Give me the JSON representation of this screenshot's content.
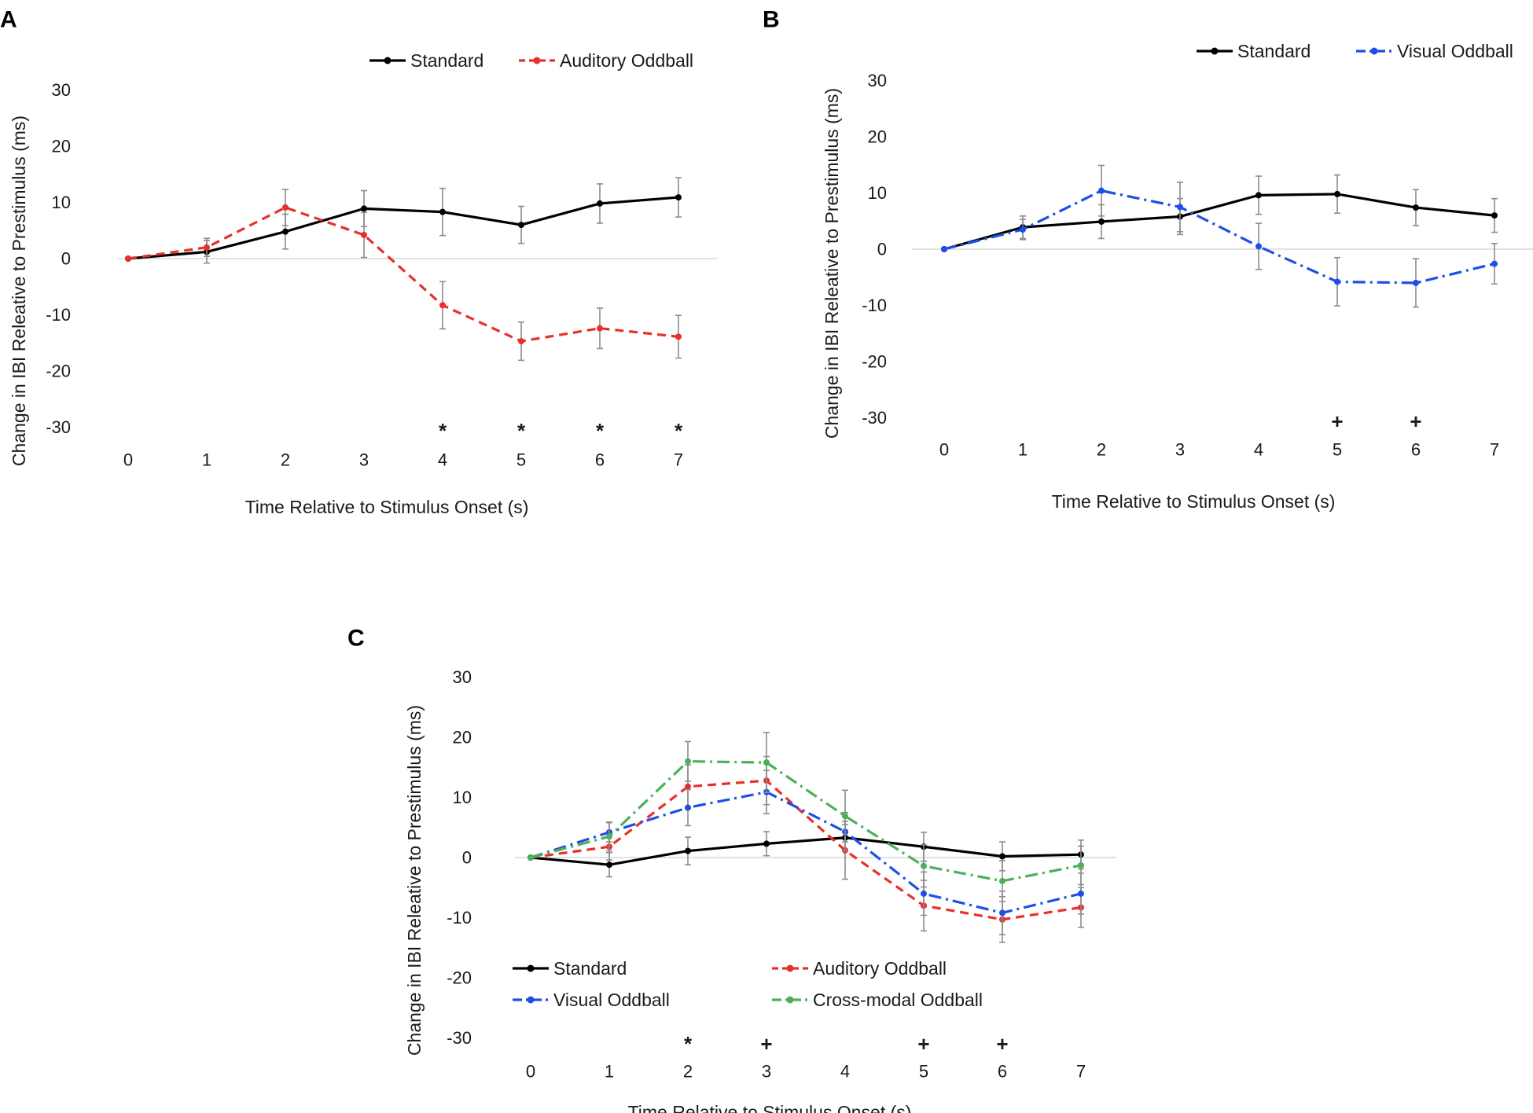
{
  "chart_data": [
    {
      "panel": "A",
      "type": "line",
      "title": "",
      "xlabel": "Time Relative to Stimulus Onset (s)",
      "ylabel": "Change in IBI Releative to Prestimulus (ms)",
      "ylim": [
        -30,
        30
      ],
      "yticks": [
        30,
        20,
        10,
        0,
        -10,
        -20,
        -30
      ],
      "x": [
        0,
        1,
        2,
        3,
        4,
        5,
        6,
        7
      ],
      "xtick_labels": [
        "0",
        "1",
        "2",
        "3",
        "4",
        "5",
        "6",
        "7"
      ],
      "series": [
        {
          "name": "Standard",
          "color": "#000000",
          "style": "solid",
          "values": [
            0,
            1.2,
            4.8,
            8.9,
            8.3,
            6.0,
            9.8,
            10.9
          ],
          "errors": [
            0,
            2.0,
            3.1,
            3.2,
            4.2,
            3.3,
            3.5,
            3.5
          ]
        },
        {
          "name": "Auditory Oddball",
          "color": "#e8302a",
          "style": "dash",
          "values": [
            0,
            2.0,
            9.1,
            4.2,
            -8.3,
            -14.7,
            -12.4,
            -13.9
          ],
          "errors": [
            0,
            1.6,
            3.2,
            4.0,
            4.2,
            3.4,
            3.6,
            3.8
          ]
        }
      ],
      "significance": [
        {
          "x": 4,
          "symbol": "*"
        },
        {
          "x": 5,
          "symbol": "*"
        },
        {
          "x": 6,
          "symbol": "*"
        },
        {
          "x": 7,
          "symbol": "*"
        }
      ],
      "legend_position": "top-right"
    },
    {
      "panel": "B",
      "type": "line",
      "title": "",
      "xlabel": "Time Relative to Stimulus Onset (s)",
      "ylabel": "Change in IBI Releative to Prestimulus (ms)",
      "ylim": [
        -30,
        30
      ],
      "yticks": [
        30,
        20,
        10,
        0,
        -10,
        -20,
        -30
      ],
      "x": [
        0,
        1,
        2,
        3,
        4,
        5,
        6,
        7
      ],
      "xtick_labels": [
        "0",
        "1",
        "2",
        "3",
        "4",
        "5",
        "6",
        "7"
      ],
      "series": [
        {
          "name": "Standard",
          "color": "#000000",
          "style": "solid",
          "values": [
            0,
            3.9,
            4.9,
            5.8,
            9.6,
            9.8,
            7.4,
            6.0
          ],
          "errors": [
            0,
            2.0,
            3.0,
            3.2,
            3.4,
            3.4,
            3.2,
            3.0
          ]
        },
        {
          "name": "Visual Oddball",
          "color": "#1f4ee6",
          "style": "dashdot",
          "values": [
            0,
            3.5,
            10.4,
            7.5,
            0.5,
            -5.8,
            -6.0,
            -2.6
          ],
          "errors": [
            0,
            1.8,
            4.5,
            4.4,
            4.1,
            4.3,
            4.3,
            3.6
          ]
        }
      ],
      "significance": [
        {
          "x": 5,
          "symbol": "+"
        },
        {
          "x": 6,
          "symbol": "+"
        }
      ],
      "legend_position": "top-right"
    },
    {
      "panel": "C",
      "type": "line",
      "title": "",
      "xlabel": "Time Relative to Stimulus Onset (s)",
      "ylabel": "Change in IBI Releative to Prestimulus (ms)",
      "ylim": [
        -30,
        30
      ],
      "yticks": [
        30,
        20,
        10,
        0,
        -10,
        -20,
        -30
      ],
      "x": [
        0,
        1,
        2,
        3,
        4,
        5,
        6,
        7
      ],
      "xtick_labels": [
        "0",
        "1",
        "2",
        "3",
        "4",
        "5",
        "6",
        "7"
      ],
      "series": [
        {
          "name": "Standard",
          "color": "#000000",
          "style": "solid",
          "values": [
            0,
            -1.2,
            1.1,
            2.3,
            3.3,
            1.8,
            0.2,
            0.5
          ],
          "errors": [
            0,
            2.0,
            2.3,
            2.0,
            2.2,
            2.4,
            2.4,
            2.4
          ]
        },
        {
          "name": "Auditory Oddball",
          "color": "#e8302a",
          "style": "dash",
          "values": [
            0,
            1.8,
            11.8,
            12.8,
            1.2,
            -8.0,
            -10.3,
            -8.3
          ],
          "errors": [
            0,
            2.2,
            3.6,
            4.0,
            4.8,
            4.2,
            3.8,
            3.3
          ]
        },
        {
          "name": "Visual Oddball",
          "color": "#1f4ee6",
          "style": "dashdot",
          "values": [
            0,
            4.2,
            8.3,
            10.9,
            4.3,
            -6.0,
            -9.2,
            -6.0
          ],
          "errors": [
            0,
            1.6,
            3.0,
            3.6,
            3.2,
            3.6,
            3.6,
            3.4
          ]
        },
        {
          "name": "Cross-modal Oddball",
          "color": "#4caf5a",
          "style": "dashdot",
          "values": [
            0,
            3.5,
            16.0,
            15.8,
            6.9,
            -1.4,
            -3.9,
            -1.3
          ],
          "errors": [
            0,
            2.4,
            3.3,
            5.0,
            4.3,
            3.5,
            3.4,
            3.2
          ]
        }
      ],
      "significance": [
        {
          "x": 2,
          "symbol": "*"
        },
        {
          "x": 3,
          "symbol": "+"
        },
        {
          "x": 5,
          "symbol": "+"
        },
        {
          "x": 6,
          "symbol": "+"
        }
      ],
      "legend_position": "bottom"
    }
  ]
}
